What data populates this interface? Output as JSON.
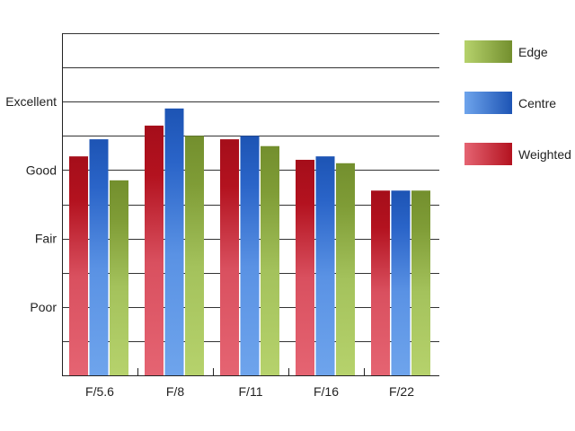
{
  "chart_data": {
    "type": "bar",
    "categories": [
      "F/5.6",
      "F/8",
      "F/11",
      "F/16",
      "F/22"
    ],
    "series": [
      {
        "name": "Weighted",
        "values": [
          6.4,
          7.3,
          6.9,
          6.3,
          5.4
        ],
        "color": "#c41a2a"
      },
      {
        "name": "Centre",
        "values": [
          6.9,
          7.8,
          7.0,
          6.4,
          5.4
        ],
        "color": "#2a63c8"
      },
      {
        "name": "Edge",
        "values": [
          5.7,
          7.0,
          6.7,
          6.2,
          5.4
        ],
        "color": "#7e9e3a"
      }
    ],
    "y_ticks": [
      {
        "value": 2,
        "label": "Poor"
      },
      {
        "value": 4,
        "label": "Fair"
      },
      {
        "value": 6,
        "label": "Good"
      },
      {
        "value": 8,
        "label": "Excellent"
      }
    ],
    "ylim": [
      0,
      10
    ],
    "grid": true,
    "legend_position": "right",
    "legend_order": [
      "Edge",
      "Centre",
      "Weighted"
    ],
    "title": "",
    "xlabel": "",
    "ylabel": ""
  }
}
